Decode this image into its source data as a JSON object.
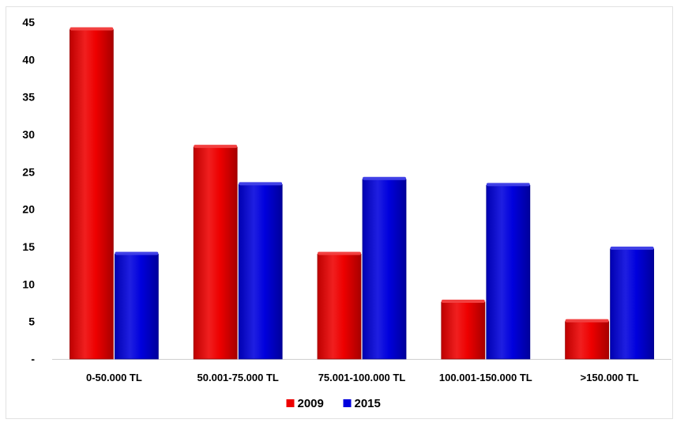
{
  "chart_data": {
    "type": "bar",
    "categories": [
      "0-50.000 TL",
      "50.001-75.000 TL",
      "75.001-100.000 TL",
      "100.001-150.000 TL",
      ">150.000 TL"
    ],
    "series": [
      {
        "name": "2009",
        "color": "#ee0000",
        "values": [
          44,
          28.3,
          14,
          7.6,
          5
        ]
      },
      {
        "name": "2015",
        "color": "#0000dd",
        "values": [
          14,
          23.3,
          24,
          23.2,
          14.7
        ]
      }
    ],
    "y_ticks": [
      "-",
      "5",
      "10",
      "15",
      "20",
      "25",
      "30",
      "35",
      "40",
      "45"
    ],
    "ylim": [
      0,
      45
    ],
    "grid": false,
    "legend_position": "bottom-center",
    "title": "",
    "xlabel": "",
    "ylabel": ""
  }
}
